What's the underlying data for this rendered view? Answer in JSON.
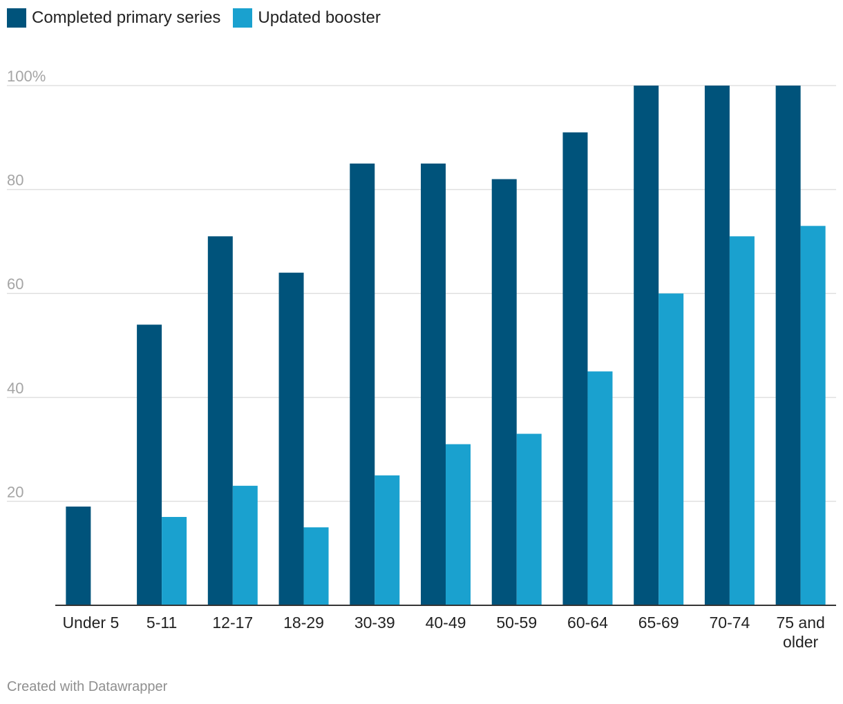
{
  "legend": {
    "items": [
      {
        "label": "Completed primary series",
        "color": "#00537b"
      },
      {
        "label": "Updated booster",
        "color": "#1aa1cf"
      }
    ]
  },
  "chart_data": {
    "type": "bar",
    "categories": [
      [
        "Under 5"
      ],
      [
        "5-11"
      ],
      [
        "12-17"
      ],
      [
        "18-29"
      ],
      [
        "30-39"
      ],
      [
        "40-49"
      ],
      [
        "50-59"
      ],
      [
        "60-64"
      ],
      [
        "65-69"
      ],
      [
        "70-74"
      ],
      [
        "75 and",
        "older"
      ]
    ],
    "series": [
      {
        "name": "Completed primary series",
        "color": "#00537b",
        "values": [
          19,
          54,
          71,
          64,
          85,
          85,
          82,
          91,
          100,
          100,
          100
        ]
      },
      {
        "name": "Updated booster",
        "color": "#1aa1cf",
        "values": [
          null,
          17,
          23,
          15,
          25,
          31,
          33,
          45,
          60,
          71,
          73
        ]
      }
    ],
    "yticks": [
      20,
      40,
      60,
      80,
      100
    ],
    "ytick_labels": [
      "20",
      "40",
      "60",
      "80",
      "100%"
    ],
    "ylim": [
      0,
      100
    ],
    "grid": true
  },
  "footer": {
    "text": "Created with Datawrapper"
  }
}
